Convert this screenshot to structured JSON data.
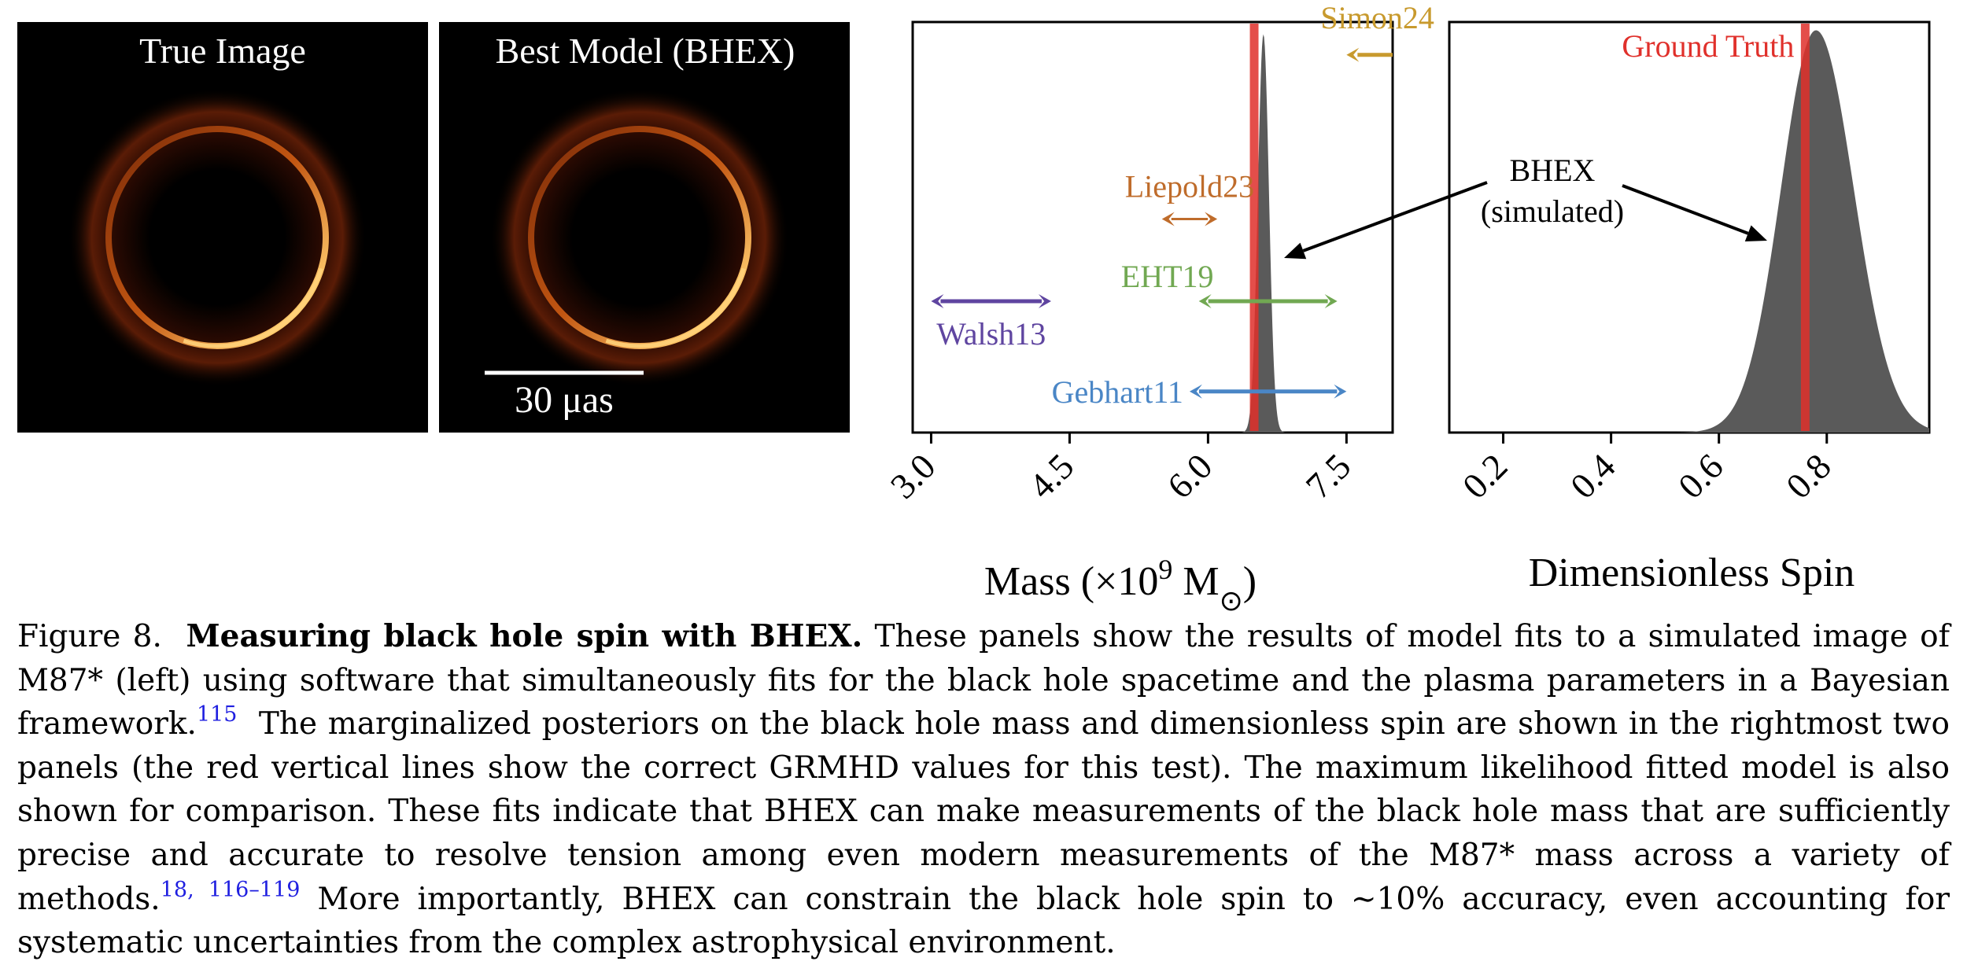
{
  "images": {
    "left_title": "True Image",
    "right_title": "Best Model (BHEX)",
    "scale_label": "30 μas"
  },
  "chart_data": [
    {
      "type": "area",
      "panel": "mass",
      "xlabel": "Mass (×10⁹ M☉)",
      "xlabel_parts": {
        "prefix": "Mass (×10",
        "exp": "9",
        "mid": " M",
        "sub": "⊙",
        "suffix": ")"
      },
      "xlim": [
        2.8,
        8.0
      ],
      "xticks": [
        3.0,
        4.5,
        6.0,
        7.5
      ],
      "xtick_labels": [
        "3.0",
        "4.5",
        "6.0",
        "7.5"
      ],
      "ylim": [
        0,
        1
      ],
      "truth": 6.5,
      "posterior": {
        "label": "BHEX (simulated)",
        "mean": 6.6,
        "sigma": 0.06
      },
      "measurements": [
        {
          "name": "Simon24",
          "lo": 7.5,
          "hi": 8.0,
          "level": 0.92,
          "open_right": true,
          "color": "#c89a2e"
        },
        {
          "name": "Liepold23",
          "lo": 5.5,
          "hi": 6.1,
          "level": 0.52,
          "color": "#bf6c2b"
        },
        {
          "name": "EHT19",
          "lo": 5.9,
          "hi": 7.4,
          "level": 0.32,
          "color": "#71a852"
        },
        {
          "name": "Walsh13",
          "lo": 3.0,
          "hi": 4.3,
          "level": 0.32,
          "color": "#5f45a0"
        },
        {
          "name": "Gebhart11",
          "lo": 5.8,
          "hi": 7.5,
          "level": 0.1,
          "color": "#4a86c6"
        }
      ]
    },
    {
      "type": "area",
      "panel": "spin",
      "xlabel": "Dimensionless Spin",
      "xlim": [
        0.1,
        0.99
      ],
      "xticks": [
        0.2,
        0.4,
        0.6,
        0.8
      ],
      "xtick_labels": [
        "0.2",
        "0.4",
        "0.6",
        "0.8"
      ],
      "ylim": [
        0,
        1
      ],
      "truth": 0.76,
      "truth_label": "Ground Truth",
      "posterior": {
        "label": "BHEX (simulated)",
        "mode": 0.78,
        "sigma_left": 0.065,
        "sigma_right": 0.07
      }
    }
  ],
  "annotation": {
    "line1": "BHEX",
    "line2": "(simulated)"
  },
  "caption": {
    "figure_label": "Figure 8.",
    "title": "Measuring black hole spin with BHEX.",
    "text_1": "These panels show the results of model fits to a simulated image of M87* (left) using software that simultaneously fits for the black hole spacetime and the plasma parameters in a Bayesian framework.",
    "ref_1": "115",
    "text_2": "The marginalized posteriors on the black hole mass and dimensionless spin are shown in the rightmost two panels (the red vertical lines show the correct GRMHD values for this test). The maximum likelihood fitted model is also shown for comparison. These fits indicate that BHEX can make measurements of the black hole mass that are sufficiently precise and accurate to resolve tension among even modern measurements of the M87* mass across a variety of methods.",
    "ref_2": "18, 116–119",
    "text_3": "More importantly, BHEX can constrain the black hole spin to ∼10% accuracy, even accounting for systematic uncertainties from the complex astrophysical environment."
  },
  "colors": {
    "truth": "#e0302b",
    "posterior": "#5a5a5a",
    "ring": "#f0a040"
  }
}
